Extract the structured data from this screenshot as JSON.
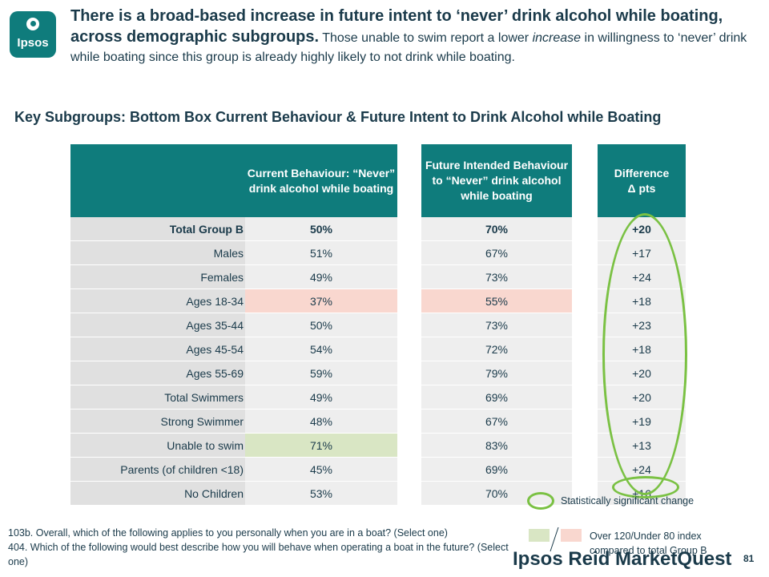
{
  "logo": {
    "text": "Ipsos"
  },
  "headline": {
    "bold": "There is a broad-based increase in future intent to ‘never’ drink alcohol while boating, across demographic subgroups.",
    "part1": " Those unable to swim report a lower ",
    "italic": "increase",
    "part2": " in willingness to ‘never’ drink while boating since this group is already highly likely to not drink while boating."
  },
  "subtitle": "Key Subgroups: Bottom Box Current Behaviour & Future Intent to Drink Alcohol while Boating",
  "table": {
    "headers": {
      "current": "Current Behaviour: “Never” drink alcohol while boating",
      "future": "Future Intended Behaviour to “Never” drink alcohol while boating",
      "diff_line1": "Difference",
      "diff_line2": "Δ pts"
    },
    "rows": [
      {
        "label": "Total Group B",
        "current": "50%",
        "future": "70%",
        "diff": "+20"
      },
      {
        "label": "Males",
        "current": "51%",
        "future": "67%",
        "diff": "+17"
      },
      {
        "label": "Females",
        "current": "49%",
        "future": "73%",
        "diff": "+24"
      },
      {
        "label": "Ages 18-34",
        "current": "37%",
        "future": "55%",
        "diff": "+18"
      },
      {
        "label": "Ages 35-44",
        "current": "50%",
        "future": "73%",
        "diff": "+23"
      },
      {
        "label": "Ages 45-54",
        "current": "54%",
        "future": "72%",
        "diff": "+18"
      },
      {
        "label": "Ages 55-69",
        "current": "59%",
        "future": "79%",
        "diff": "+20"
      },
      {
        "label": "Total Swimmers",
        "current": "49%",
        "future": "69%",
        "diff": "+20"
      },
      {
        "label": "Strong Swimmer",
        "current": "48%",
        "future": "67%",
        "diff": "+19"
      },
      {
        "label": "Unable to swim",
        "current": "71%",
        "future": "83%",
        "diff": "+13"
      },
      {
        "label": "Parents (of children <18)",
        "current": "45%",
        "future": "69%",
        "diff": "+24"
      },
      {
        "label": "No Children",
        "current": "53%",
        "future": "70%",
        "diff": "+16"
      }
    ]
  },
  "notes": {
    "line1": "103b. Overall, which of the following applies to you personally when you are in a boat? (Select one)",
    "line2": "404. Which of the following would best describe how you will behave when operating a boat in the future? (Select one)"
  },
  "legend": {
    "significant": "Statistically significant change",
    "index": "Over 120/Under 80 index compared to total Group B"
  },
  "colors": {
    "header_teal": "#0f7c7c",
    "oval_green": "#7ac143",
    "over_index_red": "#f9d7cf",
    "under_index_green": "#d9e6c4"
  },
  "brand": "Ipsos Reid MarketQuest",
  "page_number": "81"
}
